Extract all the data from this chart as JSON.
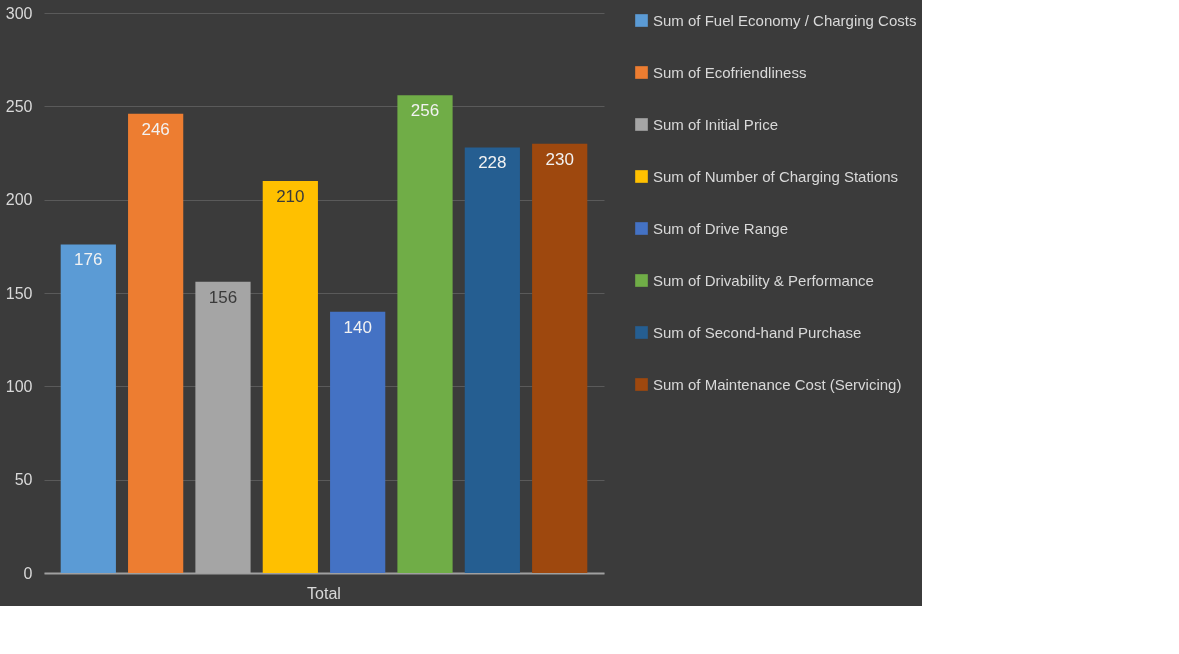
{
  "chart_data": {
    "type": "bar",
    "categories": [
      "Total"
    ],
    "series": [
      {
        "name": "Sum of Fuel Economy / Charging Costs",
        "color": "#5b9bd5",
        "values": [
          176
        ]
      },
      {
        "name": "Sum of Ecofriendliness",
        "color": "#ed7d31",
        "values": [
          246
        ]
      },
      {
        "name": "Sum of Initial Price",
        "color": "#a5a5a5",
        "values": [
          156
        ]
      },
      {
        "name": "Sum of Number of Charging Stations",
        "color": "#ffc000",
        "values": [
          210
        ]
      },
      {
        "name": "Sum of Drive Range",
        "color": "#4472c4",
        "values": [
          140
        ]
      },
      {
        "name": "Sum of Drivability & Performance",
        "color": "#70ad47",
        "values": [
          256
        ]
      },
      {
        "name": "Sum of Second-hand Purchase",
        "color": "#255e91",
        "values": [
          228
        ]
      },
      {
        "name": "Sum of Maintenance Cost (Servicing)",
        "color": "#9e480e",
        "values": [
          230
        ]
      }
    ],
    "ylim": [
      0,
      300
    ],
    "yticks": [
      0,
      50,
      100,
      150,
      200,
      250,
      300
    ],
    "grid": "y",
    "legend": "right",
    "data_labels": true
  }
}
